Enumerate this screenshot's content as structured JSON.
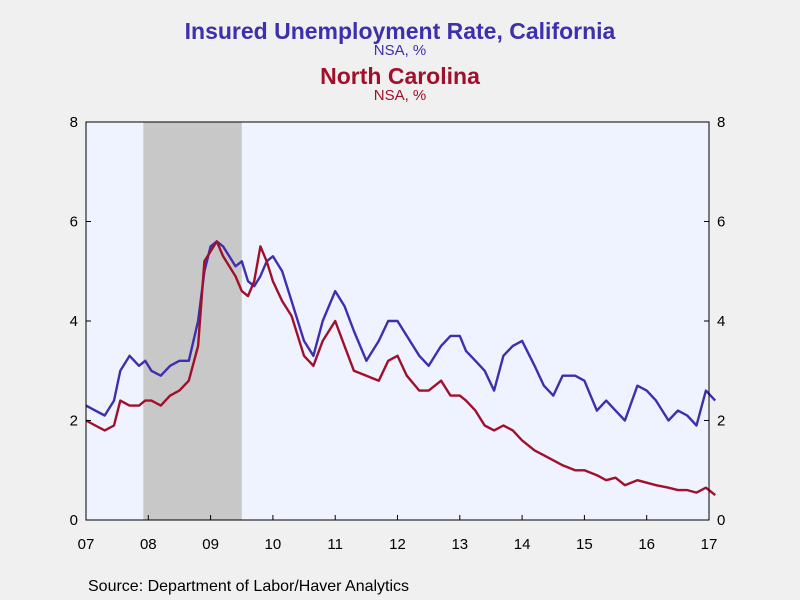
{
  "colors": {
    "california": "#3d2fae",
    "north_carolina": "#a1102a",
    "plot_bg": "#eef3ff",
    "recession": "#c8c8c8"
  },
  "source": "Source:  Department of Labor/Haver Analytics",
  "chart_data": {
    "type": "line",
    "title": "Insured Unemployment Rate, California",
    "subtitle": "NSA, %",
    "title2": "North Carolina",
    "subtitle2": "NSA, %",
    "xlabel": "",
    "ylabel": "",
    "ylim": [
      0,
      8
    ],
    "yticks": [
      0,
      2,
      4,
      6,
      8
    ],
    "xlim": [
      2007.0,
      2017.0
    ],
    "xticks": [
      {
        "x": 2007,
        "label": "07"
      },
      {
        "x": 2008,
        "label": "08"
      },
      {
        "x": 2009,
        "label": "09"
      },
      {
        "x": 2010,
        "label": "10"
      },
      {
        "x": 2011,
        "label": "11"
      },
      {
        "x": 2012,
        "label": "12"
      },
      {
        "x": 2013,
        "label": "13"
      },
      {
        "x": 2014,
        "label": "14"
      },
      {
        "x": 2015,
        "label": "15"
      },
      {
        "x": 2016,
        "label": "16"
      },
      {
        "x": 2017,
        "label": "17"
      }
    ],
    "recession": [
      2007.92,
      2009.5
    ],
    "grid": false,
    "legend": "none",
    "series": [
      {
        "name": "California",
        "color": "#3d2fae",
        "x": [
          2007.0,
          2007.15,
          2007.3,
          2007.45,
          2007.55,
          2007.7,
          2007.85,
          2007.95,
          2008.05,
          2008.2,
          2008.35,
          2008.5,
          2008.65,
          2008.8,
          2008.9,
          2009.0,
          2009.1,
          2009.2,
          2009.3,
          2009.4,
          2009.5,
          2009.6,
          2009.7,
          2009.8,
          2009.9,
          2010.0,
          2010.15,
          2010.3,
          2010.5,
          2010.65,
          2010.8,
          2011.0,
          2011.15,
          2011.3,
          2011.5,
          2011.7,
          2011.85,
          2012.0,
          2012.15,
          2012.35,
          2012.5,
          2012.7,
          2012.85,
          2013.0,
          2013.1,
          2013.25,
          2013.4,
          2013.55,
          2013.7,
          2013.85,
          2014.0,
          2014.2,
          2014.35,
          2014.5,
          2014.65,
          2014.85,
          2015.0,
          2015.2,
          2015.35,
          2015.5,
          2015.65,
          2015.85,
          2016.0,
          2016.15,
          2016.35,
          2016.5,
          2016.65,
          2016.8,
          2016.95,
          2017.1
        ],
        "values": [
          2.3,
          2.2,
          2.1,
          2.4,
          3.0,
          3.3,
          3.1,
          3.2,
          3.0,
          2.9,
          3.1,
          3.2,
          3.2,
          4.0,
          5.0,
          5.5,
          5.6,
          5.5,
          5.3,
          5.1,
          5.2,
          4.8,
          4.7,
          4.9,
          5.2,
          5.3,
          5.0,
          4.4,
          3.6,
          3.3,
          4.0,
          4.6,
          4.3,
          3.8,
          3.2,
          3.6,
          4.0,
          4.0,
          3.7,
          3.3,
          3.1,
          3.5,
          3.7,
          3.7,
          3.4,
          3.2,
          3.0,
          2.6,
          3.3,
          3.5,
          3.6,
          3.1,
          2.7,
          2.5,
          2.9,
          2.9,
          2.8,
          2.2,
          2.4,
          2.2,
          2.0,
          2.7,
          2.6,
          2.4,
          2.0,
          2.2,
          2.1,
          1.9,
          2.6,
          2.4
        ]
      },
      {
        "name": "North Carolina",
        "color": "#a1102a",
        "x": [
          2007.0,
          2007.15,
          2007.3,
          2007.45,
          2007.55,
          2007.7,
          2007.85,
          2007.95,
          2008.05,
          2008.2,
          2008.35,
          2008.5,
          2008.65,
          2008.8,
          2008.9,
          2009.0,
          2009.1,
          2009.2,
          2009.3,
          2009.4,
          2009.5,
          2009.6,
          2009.7,
          2009.8,
          2009.9,
          2010.0,
          2010.15,
          2010.3,
          2010.5,
          2010.65,
          2010.8,
          2011.0,
          2011.15,
          2011.3,
          2011.5,
          2011.7,
          2011.85,
          2012.0,
          2012.15,
          2012.35,
          2012.5,
          2012.7,
          2012.85,
          2013.0,
          2013.1,
          2013.25,
          2013.4,
          2013.55,
          2013.7,
          2013.85,
          2014.0,
          2014.2,
          2014.35,
          2014.5,
          2014.65,
          2014.85,
          2015.0,
          2015.2,
          2015.35,
          2015.5,
          2015.65,
          2015.85,
          2016.0,
          2016.15,
          2016.35,
          2016.5,
          2016.65,
          2016.8,
          2016.95,
          2017.1
        ],
        "values": [
          2.0,
          1.9,
          1.8,
          1.9,
          2.4,
          2.3,
          2.3,
          2.4,
          2.4,
          2.3,
          2.5,
          2.6,
          2.8,
          3.5,
          5.2,
          5.4,
          5.6,
          5.3,
          5.1,
          4.9,
          4.6,
          4.5,
          4.8,
          5.5,
          5.2,
          4.8,
          4.4,
          4.1,
          3.3,
          3.1,
          3.6,
          4.0,
          3.5,
          3.0,
          2.9,
          2.8,
          3.2,
          3.3,
          2.9,
          2.6,
          2.6,
          2.8,
          2.5,
          2.5,
          2.4,
          2.2,
          1.9,
          1.8,
          1.9,
          1.8,
          1.6,
          1.4,
          1.3,
          1.2,
          1.1,
          1.0,
          1.0,
          0.9,
          0.8,
          0.85,
          0.7,
          0.8,
          0.75,
          0.7,
          0.65,
          0.6,
          0.6,
          0.55,
          0.65,
          0.5
        ]
      }
    ]
  }
}
